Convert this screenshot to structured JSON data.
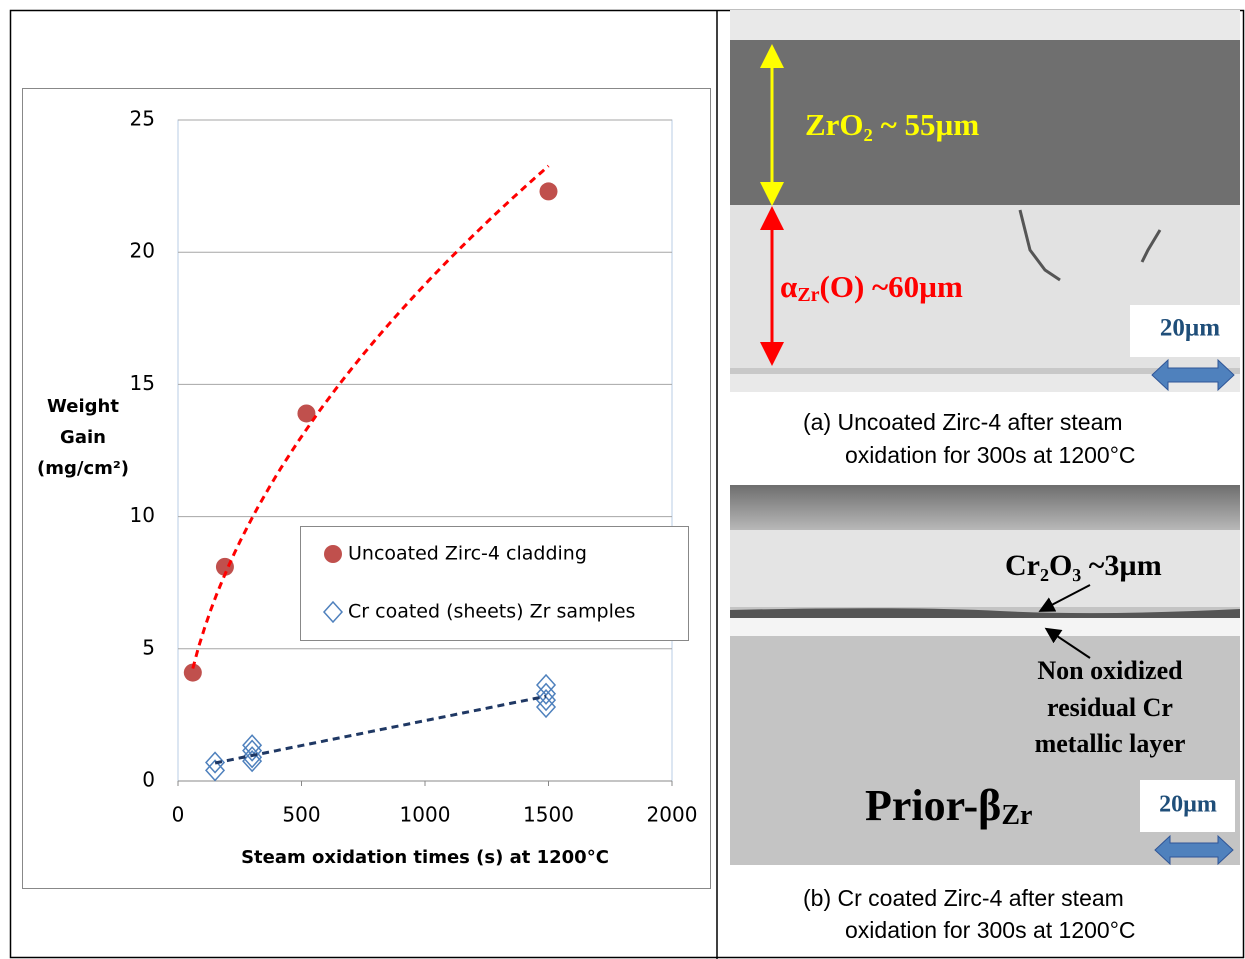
{
  "chart_data": {
    "type": "scatter",
    "xlabel": "Steam oxidation times (s) at 1200°C",
    "ylabel_lines": [
      "Weight",
      "Gain",
      "(mg/cm²)"
    ],
    "xlim": [
      0,
      2000
    ],
    "xticks": [
      0,
      500,
      1000,
      1500,
      2000
    ],
    "ylim": [
      0,
      25
    ],
    "yticks": [
      0,
      5,
      10,
      15,
      20,
      25
    ],
    "grid": true,
    "legend": "center-right",
    "series": [
      {
        "name": "Uncoated Zirc-4 cladding",
        "color": "#c0504d",
        "marker": "circle",
        "trendline": "power",
        "trend_color": "#ff0000",
        "x": [
          60,
          190,
          520,
          1500
        ],
        "values": [
          4.1,
          8.1,
          13.9,
          22.3
        ]
      },
      {
        "name": "Cr coated (sheets) Zr samples",
        "color": "#4f81bd",
        "marker": "diamond",
        "trendline": "linear",
        "trend_color": "#1f3864",
        "x": [
          150,
          150,
          300,
          300,
          300,
          300,
          1490,
          1490,
          1490,
          1490
        ],
        "values": [
          0.4,
          0.7,
          0.75,
          0.9,
          1.15,
          1.35,
          2.8,
          3.06,
          3.3,
          3.63
        ]
      }
    ]
  },
  "panel_a": {
    "layer1": "ZrO₂ ~ 55µm",
    "layer2": {
      "main": "α",
      "sub": "Zr",
      "rest": "(O) ~60µm"
    },
    "scale": "20µm",
    "caption": [
      "(a) Uncoated Zirc-4 after steam",
      "oxidation for 300s at 1200°C"
    ]
  },
  "panel_b": {
    "oxide": "Cr₂O₃ ~3µm",
    "metal": [
      "Non oxidized",
      "residual Cr",
      "metallic layer"
    ],
    "substrate": {
      "main": "Prior-β",
      "sub": "Zr"
    },
    "scale": "20µm",
    "caption": [
      "(b) Cr coated Zirc-4 after steam",
      "oxidation for 300s at 1200°C"
    ]
  }
}
